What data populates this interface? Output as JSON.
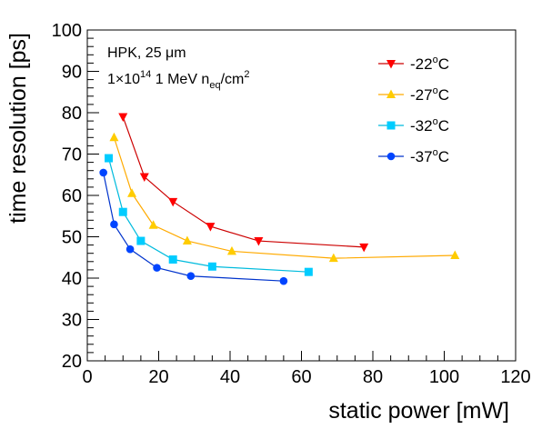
{
  "chart_data": {
    "type": "line",
    "title": "",
    "xlabel": "static power [mW]",
    "ylabel": "time resolution [ps]",
    "xlim": [
      0,
      120
    ],
    "ylim": [
      20,
      100
    ],
    "x_ticks": [
      0,
      20,
      40,
      60,
      80,
      100,
      120
    ],
    "y_ticks": [
      20,
      30,
      40,
      50,
      60,
      70,
      80,
      90,
      100
    ],
    "grid": false,
    "legend_position": "top-right",
    "annotations": {
      "line1": "HPK, 25 μm",
      "line2_prefix": "1×10",
      "line2_exp": "14",
      "line2_mid": " 1 MeV n",
      "line2_sub": "eq",
      "line2_unit": "/cm",
      "line2_unit_exp": "2"
    },
    "series": [
      {
        "name": "-22°C",
        "label_main": "-22",
        "label_sup": "o",
        "label_tail": "C",
        "color": "#cc0000",
        "marker_color": "#ff0000",
        "marker": "triangle-down",
        "x": [
          10,
          16,
          24,
          34.5,
          48,
          77.5
        ],
        "y": [
          79,
          64.5,
          58.5,
          52.5,
          49,
          47.5
        ]
      },
      {
        "name": "-27°C",
        "label_main": "-27",
        "label_sup": "o",
        "label_tail": "C",
        "color": "#ffaa00",
        "marker_color": "#ffcc00",
        "marker": "triangle-up",
        "x": [
          7.5,
          12.5,
          18.5,
          28,
          40.5,
          69,
          103
        ],
        "y": [
          74,
          60.5,
          52.8,
          49,
          46.5,
          44.8,
          45.5
        ]
      },
      {
        "name": "-32°C",
        "label_main": "-32",
        "label_sup": "o",
        "label_tail": "C",
        "color": "#00bbdd",
        "marker_color": "#00ccff",
        "marker": "square",
        "x": [
          6,
          10,
          15,
          24,
          35,
          62
        ],
        "y": [
          69,
          56,
          49,
          44.5,
          42.8,
          41.5
        ]
      },
      {
        "name": "-37°C",
        "label_main": "-37",
        "label_sup": "o",
        "label_tail": "C",
        "color": "#0033cc",
        "marker_color": "#0044ff",
        "marker": "circle",
        "x": [
          4.5,
          7.5,
          12,
          19.5,
          29,
          55
        ],
        "y": [
          65.5,
          53,
          47,
          42.5,
          40.5,
          39.3
        ]
      }
    ]
  }
}
